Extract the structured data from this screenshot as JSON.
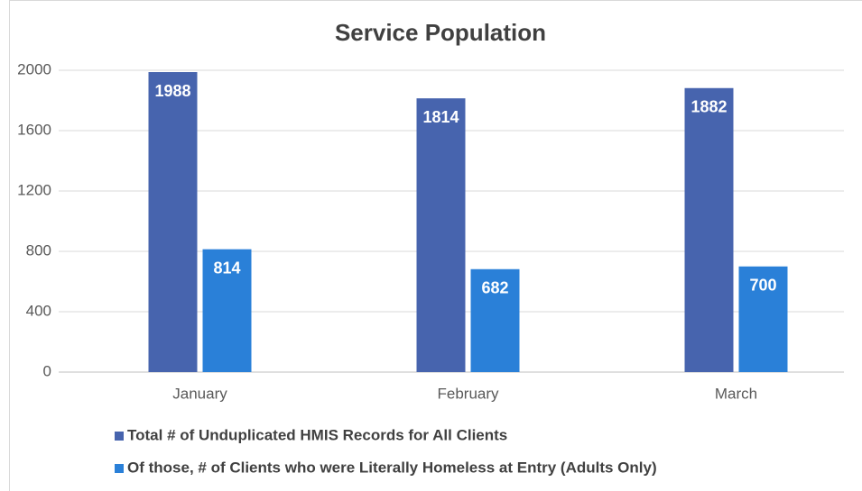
{
  "chart_data": {
    "type": "bar",
    "title": "Service Population",
    "categories": [
      "January",
      "February",
      "March"
    ],
    "series": [
      {
        "name": "Total # of Unduplicated HMIS Records for All Clients",
        "color": "#4764ae",
        "values": [
          1988,
          1814,
          1882
        ]
      },
      {
        "name": "Of those, # of Clients who were Literally Homeless at Entry (Adults Only)",
        "color": "#2a80d8",
        "values": [
          814,
          682,
          700
        ]
      }
    ],
    "ylim": [
      0,
      2000
    ],
    "yticks": [
      0,
      400,
      800,
      1200,
      1600,
      2000
    ],
    "grid": true,
    "legend": "bottom"
  }
}
